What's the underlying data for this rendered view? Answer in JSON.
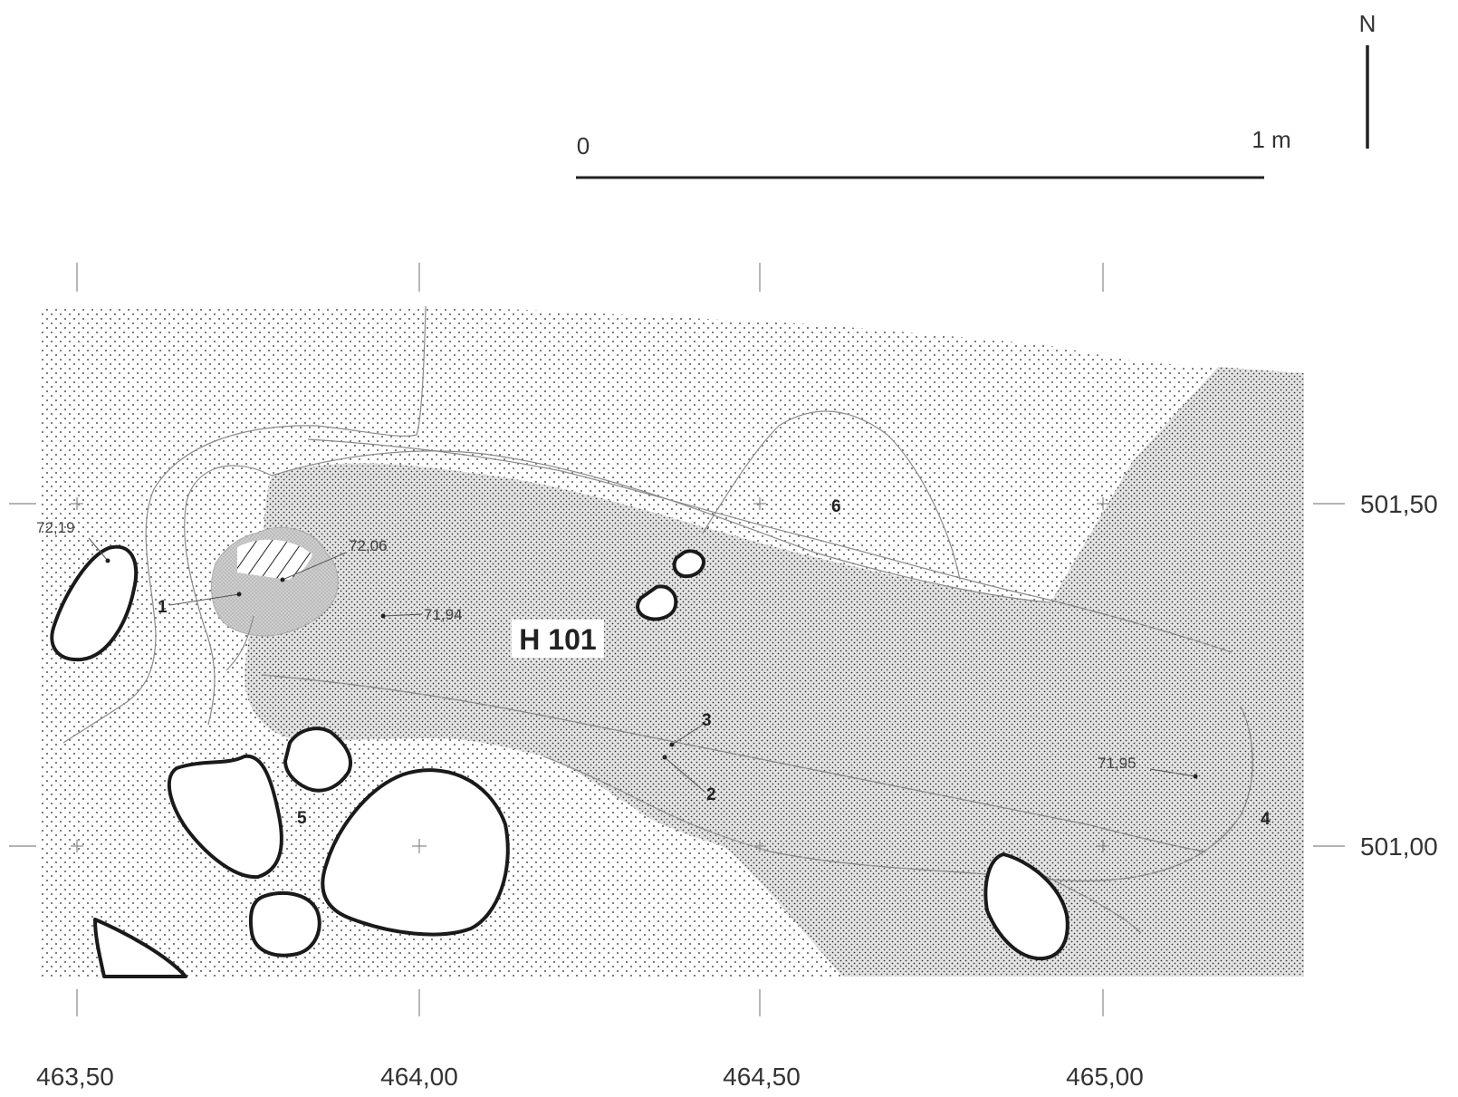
{
  "north_label": "N",
  "scale": {
    "start_label": "0",
    "end_label": "1 m"
  },
  "x_axis_labels": [
    "463,50",
    "464,00",
    "464,50",
    "465,00"
  ],
  "y_axis_labels": [
    "501,50",
    "501,00"
  ],
  "feature_label": "H 101",
  "elevations": [
    "72,19",
    "72,06",
    "71,94",
    "71,95"
  ],
  "find_numbers": [
    "1",
    "2",
    "3",
    "4",
    "5",
    "6"
  ]
}
